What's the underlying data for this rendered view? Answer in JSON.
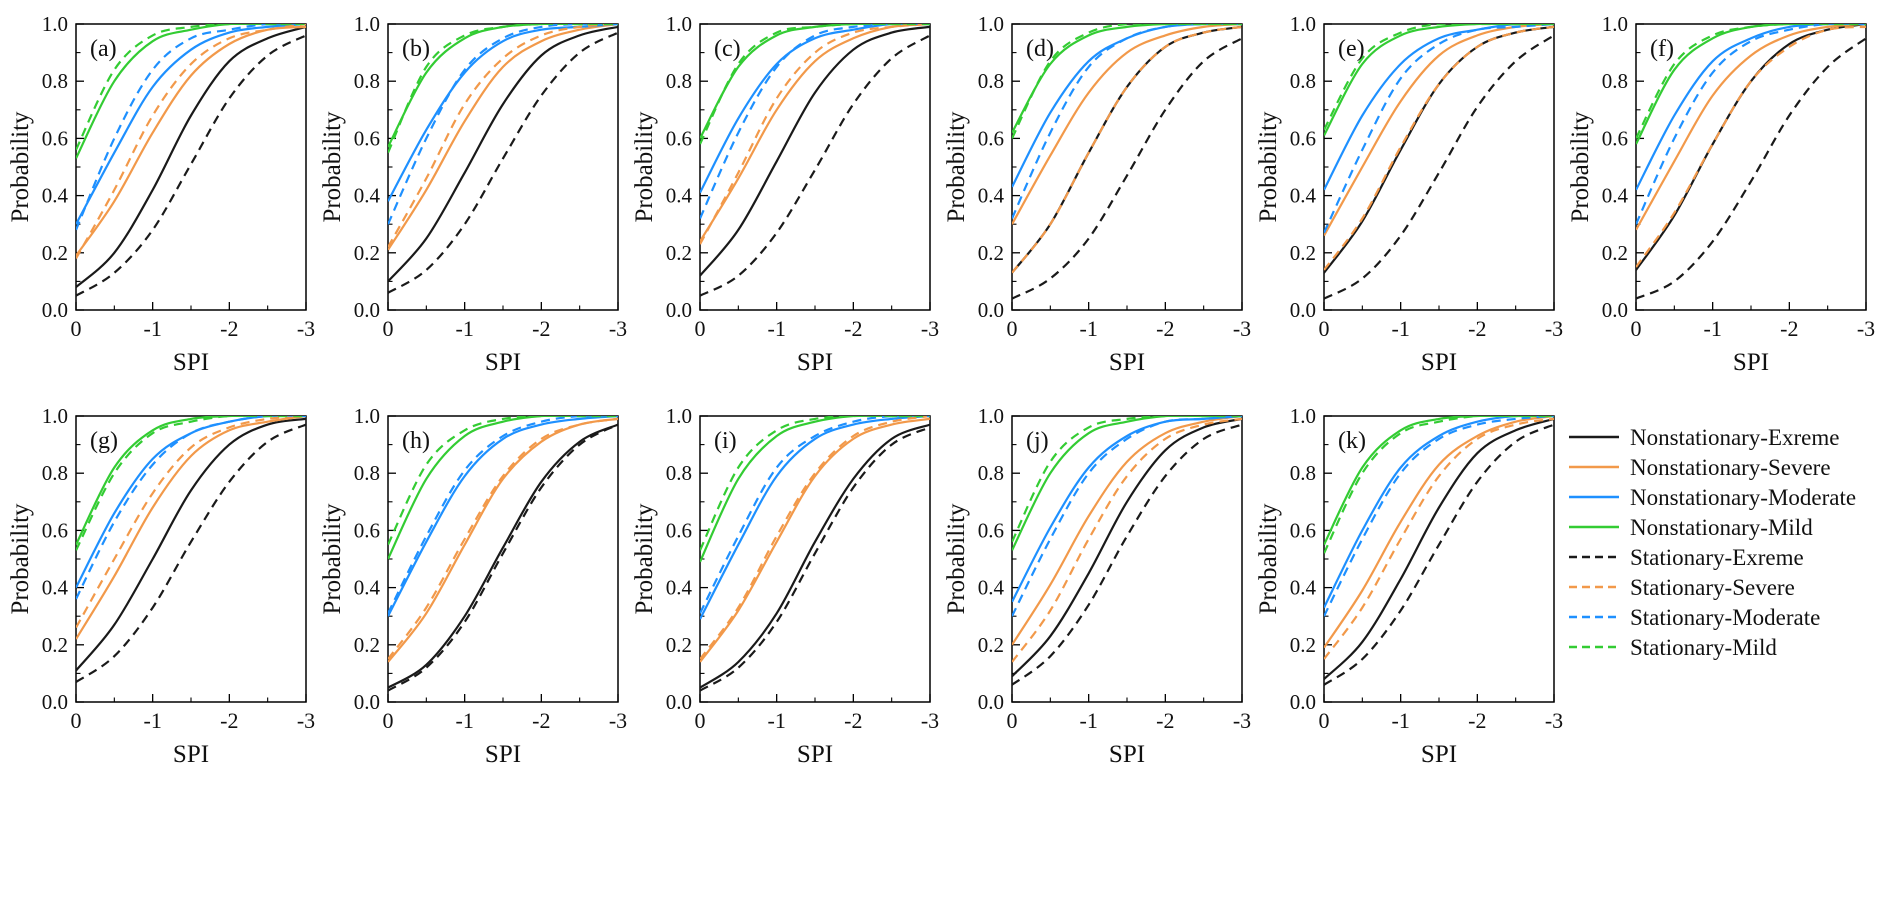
{
  "figure": {
    "background": "#ffffff"
  },
  "chart_data": {
    "type": "line",
    "title": "",
    "xlabel": "SPI",
    "ylabel": "Probability",
    "x": [
      0,
      -0.5,
      -1,
      -1.5,
      -2,
      -2.5,
      -3
    ],
    "xlim": [
      0,
      -3
    ],
    "ylim": [
      0,
      1
    ],
    "x_ticks": [
      0,
      -1,
      -2,
      -3
    ],
    "x_tick_labels": [
      "0",
      "-1",
      "-2",
      "-3"
    ],
    "y_ticks": [
      0,
      0.2,
      0.4,
      0.6,
      0.8,
      1.0
    ],
    "y_tick_labels": [
      "0.0",
      "0.2",
      "0.4",
      "0.6",
      "0.8",
      "1.0"
    ],
    "grid": false,
    "legend_position": "right-of-bottom-row",
    "series_defs": [
      {
        "name": "Nonstationary-Exreme",
        "color": "#1a1a1a",
        "dashed": false
      },
      {
        "name": "Nonstationary-Severe",
        "color": "#f2994a",
        "dashed": false
      },
      {
        "name": "Nonstationary-Moderate",
        "color": "#1e90ff",
        "dashed": false
      },
      {
        "name": "Nonstationary-Mild",
        "color": "#33cc33",
        "dashed": false
      },
      {
        "name": "Stationary-Exreme",
        "color": "#1a1a1a",
        "dashed": true
      },
      {
        "name": "Stationary-Severe",
        "color": "#f2994a",
        "dashed": true
      },
      {
        "name": "Stationary-Moderate",
        "color": "#1e90ff",
        "dashed": true
      },
      {
        "name": "Stationary-Mild",
        "color": "#33cc33",
        "dashed": true
      }
    ],
    "panels": [
      {
        "tag": "(a)",
        "series_values": [
          [
            0.08,
            0.2,
            0.42,
            0.68,
            0.87,
            0.95,
            0.99
          ],
          [
            0.19,
            0.38,
            0.62,
            0.82,
            0.93,
            0.98,
            0.99
          ],
          [
            0.3,
            0.55,
            0.78,
            0.91,
            0.97,
            0.99,
            1.0
          ],
          [
            0.53,
            0.8,
            0.94,
            0.98,
            1.0,
            1.0,
            1.0
          ],
          [
            0.05,
            0.13,
            0.28,
            0.51,
            0.74,
            0.89,
            0.96
          ],
          [
            0.18,
            0.42,
            0.68,
            0.86,
            0.95,
            0.98,
            1.0
          ],
          [
            0.28,
            0.6,
            0.84,
            0.95,
            0.98,
            1.0,
            1.0
          ],
          [
            0.56,
            0.84,
            0.96,
            0.99,
            1.0,
            1.0,
            1.0
          ]
        ]
      },
      {
        "tag": "(b)",
        "series_values": [
          [
            0.1,
            0.25,
            0.48,
            0.72,
            0.89,
            0.96,
            0.99
          ],
          [
            0.21,
            0.42,
            0.66,
            0.85,
            0.94,
            0.98,
            1.0
          ],
          [
            0.38,
            0.63,
            0.83,
            0.94,
            0.98,
            0.99,
            1.0
          ],
          [
            0.57,
            0.83,
            0.95,
            0.99,
            1.0,
            1.0,
            1.0
          ],
          [
            0.06,
            0.14,
            0.3,
            0.53,
            0.75,
            0.9,
            0.97
          ],
          [
            0.22,
            0.46,
            0.72,
            0.88,
            0.96,
            0.99,
            1.0
          ],
          [
            0.3,
            0.6,
            0.84,
            0.95,
            0.99,
            1.0,
            1.0
          ],
          [
            0.55,
            0.85,
            0.96,
            0.99,
            1.0,
            1.0,
            1.0
          ]
        ]
      },
      {
        "tag": "(c)",
        "series_values": [
          [
            0.12,
            0.28,
            0.52,
            0.76,
            0.91,
            0.97,
            0.99
          ],
          [
            0.24,
            0.46,
            0.7,
            0.87,
            0.95,
            0.99,
            1.0
          ],
          [
            0.41,
            0.67,
            0.86,
            0.95,
            0.98,
            1.0,
            1.0
          ],
          [
            0.6,
            0.85,
            0.96,
            0.99,
            1.0,
            1.0,
            1.0
          ],
          [
            0.05,
            0.12,
            0.27,
            0.49,
            0.72,
            0.88,
            0.96
          ],
          [
            0.23,
            0.48,
            0.74,
            0.9,
            0.97,
            0.99,
            1.0
          ],
          [
            0.32,
            0.62,
            0.85,
            0.96,
            0.99,
            1.0,
            1.0
          ],
          [
            0.58,
            0.86,
            0.97,
            0.99,
            1.0,
            1.0,
            1.0
          ]
        ]
      },
      {
        "tag": "(d)",
        "series_values": [
          [
            0.13,
            0.3,
            0.55,
            0.78,
            0.92,
            0.97,
            0.99
          ],
          [
            0.3,
            0.54,
            0.76,
            0.9,
            0.96,
            0.99,
            1.0
          ],
          [
            0.43,
            0.69,
            0.87,
            0.95,
            0.99,
            1.0,
            1.0
          ],
          [
            0.62,
            0.86,
            0.96,
            0.99,
            1.0,
            1.0,
            1.0
          ],
          [
            0.04,
            0.11,
            0.25,
            0.47,
            0.7,
            0.87,
            0.95
          ],
          [
            0.13,
            0.3,
            0.55,
            0.78,
            0.92,
            0.97,
            0.99
          ],
          [
            0.32,
            0.62,
            0.85,
            0.95,
            0.99,
            1.0,
            1.0
          ],
          [
            0.6,
            0.87,
            0.97,
            1.0,
            1.0,
            1.0,
            1.0
          ]
        ]
      },
      {
        "tag": "(e)",
        "series_values": [
          [
            0.13,
            0.31,
            0.56,
            0.79,
            0.92,
            0.97,
            0.99
          ],
          [
            0.26,
            0.5,
            0.73,
            0.89,
            0.96,
            0.99,
            1.0
          ],
          [
            0.42,
            0.68,
            0.86,
            0.95,
            0.98,
            1.0,
            1.0
          ],
          [
            0.61,
            0.86,
            0.96,
            0.99,
            1.0,
            1.0,
            1.0
          ],
          [
            0.04,
            0.11,
            0.26,
            0.48,
            0.71,
            0.87,
            0.96
          ],
          [
            0.14,
            0.32,
            0.57,
            0.79,
            0.92,
            0.97,
            0.99
          ],
          [
            0.27,
            0.56,
            0.81,
            0.93,
            0.98,
            0.99,
            1.0
          ],
          [
            0.63,
            0.88,
            0.97,
            1.0,
            1.0,
            1.0,
            1.0
          ]
        ]
      },
      {
        "tag": "(f)",
        "series_values": [
          [
            0.14,
            0.33,
            0.58,
            0.8,
            0.93,
            0.98,
            1.0
          ],
          [
            0.28,
            0.52,
            0.75,
            0.89,
            0.96,
            0.99,
            1.0
          ],
          [
            0.42,
            0.68,
            0.87,
            0.95,
            0.99,
            1.0,
            1.0
          ],
          [
            0.58,
            0.84,
            0.95,
            0.99,
            1.0,
            1.0,
            1.0
          ],
          [
            0.04,
            0.1,
            0.24,
            0.45,
            0.68,
            0.85,
            0.95
          ],
          [
            0.15,
            0.34,
            0.58,
            0.8,
            0.92,
            0.98,
            0.99
          ],
          [
            0.3,
            0.6,
            0.83,
            0.94,
            0.98,
            1.0,
            1.0
          ],
          [
            0.6,
            0.86,
            0.96,
            0.99,
            1.0,
            1.0,
            1.0
          ]
        ]
      },
      {
        "tag": "(g)",
        "series_values": [
          [
            0.11,
            0.27,
            0.5,
            0.74,
            0.9,
            0.97,
            0.99
          ],
          [
            0.22,
            0.44,
            0.68,
            0.86,
            0.95,
            0.98,
            1.0
          ],
          [
            0.4,
            0.66,
            0.85,
            0.94,
            0.98,
            1.0,
            1.0
          ],
          [
            0.55,
            0.82,
            0.95,
            0.99,
            1.0,
            1.0,
            1.0
          ],
          [
            0.07,
            0.16,
            0.33,
            0.56,
            0.77,
            0.91,
            0.97
          ],
          [
            0.26,
            0.5,
            0.73,
            0.89,
            0.96,
            0.99,
            1.0
          ],
          [
            0.36,
            0.63,
            0.83,
            0.94,
            0.98,
            1.0,
            1.0
          ],
          [
            0.53,
            0.8,
            0.94,
            0.98,
            1.0,
            1.0,
            1.0
          ]
        ]
      },
      {
        "tag": "(h)",
        "series_values": [
          [
            0.05,
            0.13,
            0.3,
            0.54,
            0.77,
            0.91,
            0.97
          ],
          [
            0.14,
            0.31,
            0.55,
            0.78,
            0.91,
            0.97,
            0.99
          ],
          [
            0.3,
            0.56,
            0.79,
            0.92,
            0.97,
            0.99,
            1.0
          ],
          [
            0.5,
            0.78,
            0.93,
            0.98,
            1.0,
            1.0,
            1.0
          ],
          [
            0.04,
            0.12,
            0.28,
            0.52,
            0.75,
            0.9,
            0.97
          ],
          [
            0.15,
            0.33,
            0.57,
            0.79,
            0.92,
            0.97,
            0.99
          ],
          [
            0.31,
            0.58,
            0.81,
            0.93,
            0.98,
            1.0,
            1.0
          ],
          [
            0.55,
            0.83,
            0.95,
            0.99,
            1.0,
            1.0,
            1.0
          ]
        ]
      },
      {
        "tag": "(i)",
        "series_values": [
          [
            0.05,
            0.14,
            0.31,
            0.56,
            0.78,
            0.92,
            0.97
          ],
          [
            0.14,
            0.32,
            0.56,
            0.79,
            0.92,
            0.97,
            0.99
          ],
          [
            0.29,
            0.55,
            0.79,
            0.92,
            0.97,
            0.99,
            1.0
          ],
          [
            0.49,
            0.78,
            0.93,
            0.98,
            1.0,
            1.0,
            1.0
          ],
          [
            0.04,
            0.12,
            0.28,
            0.52,
            0.75,
            0.9,
            0.96
          ],
          [
            0.15,
            0.33,
            0.58,
            0.8,
            0.93,
            0.98,
            1.0
          ],
          [
            0.31,
            0.58,
            0.82,
            0.93,
            0.98,
            1.0,
            1.0
          ],
          [
            0.53,
            0.82,
            0.95,
            0.99,
            1.0,
            1.0,
            1.0
          ]
        ]
      },
      {
        "tag": "(j)",
        "series_values": [
          [
            0.09,
            0.23,
            0.45,
            0.7,
            0.88,
            0.96,
            0.99
          ],
          [
            0.2,
            0.41,
            0.65,
            0.84,
            0.94,
            0.98,
            1.0
          ],
          [
            0.35,
            0.61,
            0.82,
            0.93,
            0.98,
            0.99,
            1.0
          ],
          [
            0.53,
            0.8,
            0.94,
            0.98,
            1.0,
            1.0,
            1.0
          ],
          [
            0.06,
            0.16,
            0.34,
            0.58,
            0.79,
            0.92,
            0.97
          ],
          [
            0.14,
            0.32,
            0.57,
            0.79,
            0.92,
            0.97,
            0.99
          ],
          [
            0.3,
            0.57,
            0.8,
            0.92,
            0.98,
            0.99,
            1.0
          ],
          [
            0.56,
            0.84,
            0.96,
            0.99,
            1.0,
            1.0,
            1.0
          ]
        ]
      },
      {
        "tag": "(k)",
        "series_values": [
          [
            0.08,
            0.21,
            0.43,
            0.68,
            0.87,
            0.95,
            0.99
          ],
          [
            0.19,
            0.39,
            0.63,
            0.83,
            0.93,
            0.98,
            1.0
          ],
          [
            0.33,
            0.6,
            0.82,
            0.93,
            0.98,
            1.0,
            1.0
          ],
          [
            0.55,
            0.82,
            0.95,
            0.99,
            1.0,
            1.0,
            1.0
          ],
          [
            0.06,
            0.15,
            0.32,
            0.55,
            0.77,
            0.91,
            0.97
          ],
          [
            0.15,
            0.33,
            0.57,
            0.79,
            0.92,
            0.97,
            0.99
          ],
          [
            0.3,
            0.57,
            0.8,
            0.92,
            0.97,
            0.99,
            1.0
          ],
          [
            0.52,
            0.8,
            0.94,
            0.98,
            1.0,
            1.0,
            1.0
          ]
        ]
      }
    ]
  },
  "legend": {
    "items_from": "chart_data.series_defs"
  }
}
